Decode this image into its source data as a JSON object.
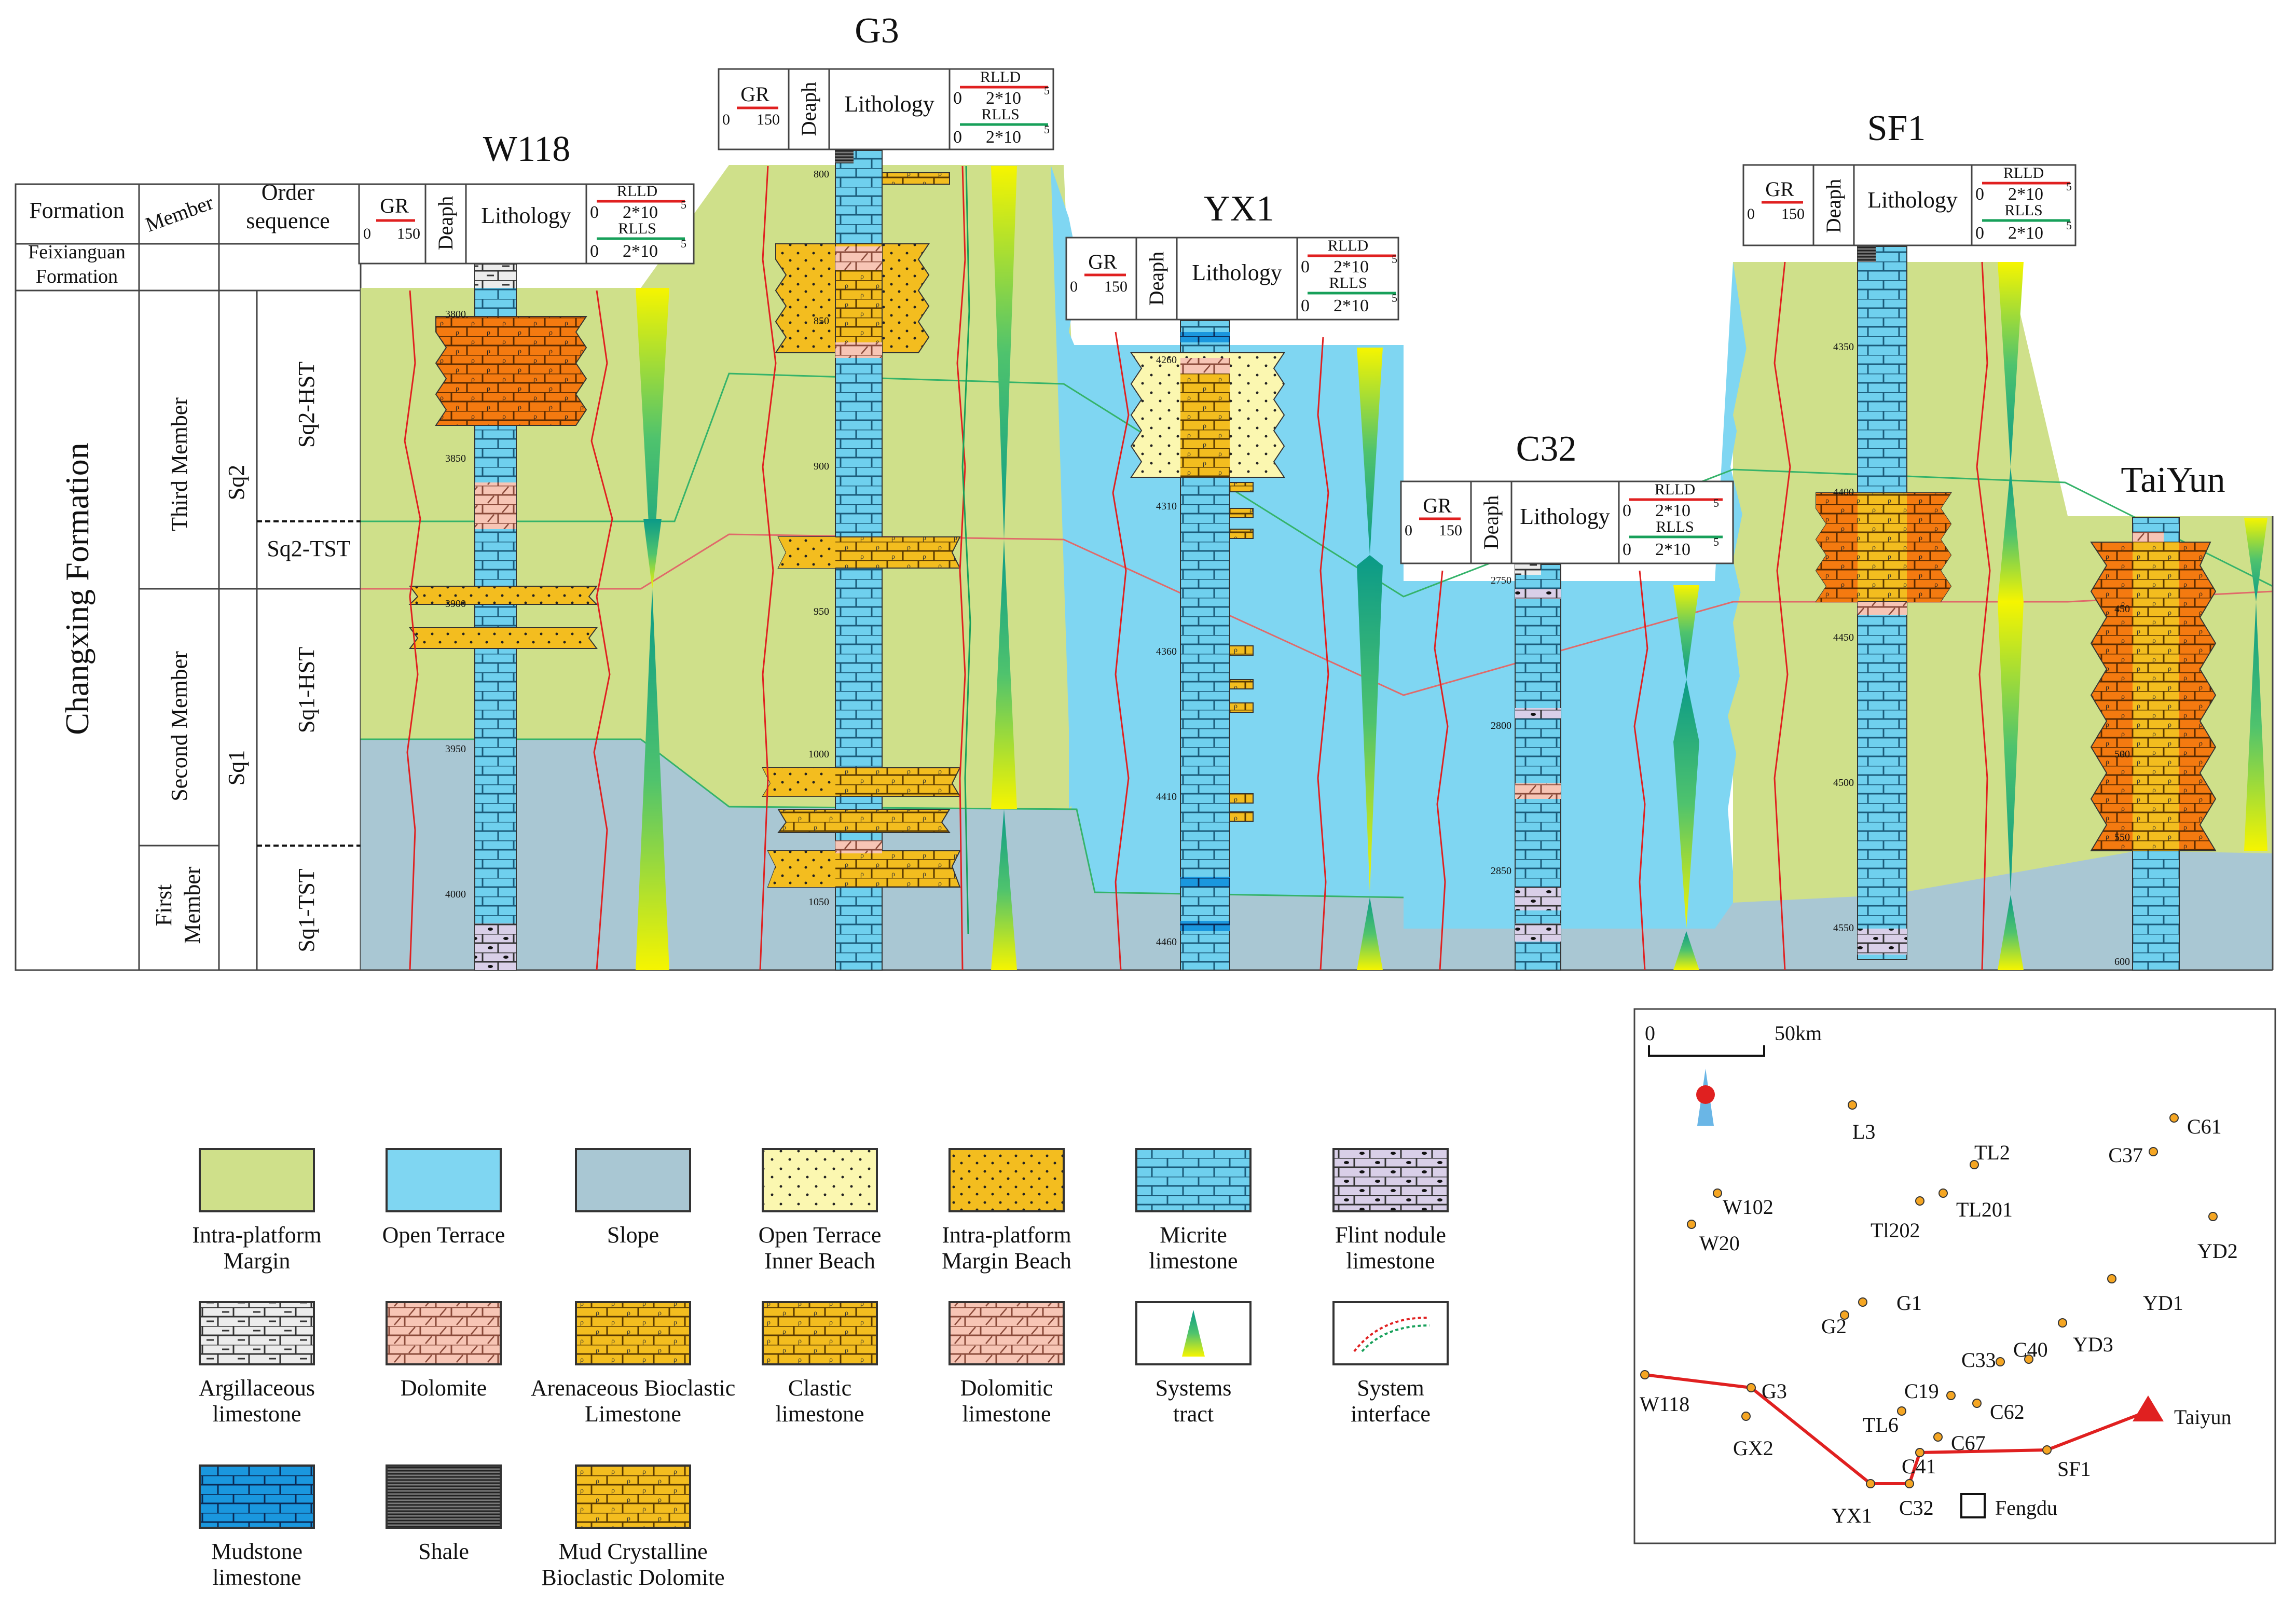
{
  "chart_data": {
    "type": "well-correlation-section",
    "title": "",
    "strat": {
      "formation_header": "Formation",
      "member_header": "Member",
      "order_header_1": "Order",
      "order_header_2": "sequence",
      "feixianguan_1": "Feixianguan",
      "feixianguan_2": "Formation",
      "changxing": "Changxing Formation",
      "third_member": "Third Member",
      "second_member": "Second Member",
      "first_member_1": "First",
      "first_member_2": "Member",
      "sq2": "Sq2",
      "sq1": "Sq1",
      "sq2_hst": "Sq2-HST",
      "sq2_tst": "Sq2-TST",
      "sq1_hst": "Sq1-HST",
      "sq1_tst": "Sq1-TST"
    },
    "track_header": {
      "gr": "GR",
      "gr_min": "0",
      "gr_max": "150",
      "depth": "Deaph",
      "lithology": "Lithology",
      "rlld": "RLLD",
      "rlls": "RLLS",
      "res_min": "0",
      "res_max": "2*10",
      "res_exp": "5"
    },
    "wells": [
      {
        "name": "W118",
        "depths": [
          3800,
          3850,
          3900,
          3950,
          4000
        ]
      },
      {
        "name": "G3",
        "depths": [
          800,
          850,
          900,
          950,
          1000,
          1050
        ]
      },
      {
        "name": "YX1",
        "depths": [
          4260,
          4310,
          4360,
          4410,
          4460
        ]
      },
      {
        "name": "C32",
        "depths": [
          2750,
          2800,
          2850
        ]
      },
      {
        "name": "SF1",
        "depths": [
          4350,
          4400,
          4450,
          4500,
          4550
        ]
      },
      {
        "name": "TaiYun",
        "depths": [
          450,
          500,
          550,
          600
        ]
      }
    ],
    "legend": [
      {
        "key": "platform-margin",
        "color": "#cfe08a",
        "l1": "Intra-platform",
        "l2": "Margin"
      },
      {
        "key": "open-terrace",
        "color": "#7fd6f2",
        "l1": "Open Terrace",
        "l2": ""
      },
      {
        "key": "slope",
        "color": "#a9c7d3",
        "l1": "Slope",
        "l2": ""
      },
      {
        "key": "inner-beach",
        "color": "#fbf7b0",
        "l1": "Open Terrace",
        "l2": "Inner Beach"
      },
      {
        "key": "margin-beach",
        "color": "#f3bd1f",
        "l1": "Intra-platform",
        "l2": "Margin Beach"
      },
      {
        "key": "micrite",
        "color": "#6fd0ee",
        "l1": "Micrite",
        "l2": "limestone"
      },
      {
        "key": "flint",
        "color": "#d9cfe8",
        "l1": "Flint nodule",
        "l2": "limestone"
      },
      {
        "key": "argillaceous",
        "color": "#ececec",
        "l1": "Argillaceous",
        "l2": "limestone"
      },
      {
        "key": "dolomite",
        "color": "#f7c5b5",
        "l1": "Dolomite",
        "l2": ""
      },
      {
        "key": "arenaceous",
        "color": "#f3bd1f",
        "l1": "Arenaceous Bioclastic",
        "l2": "Limestone"
      },
      {
        "key": "clastic",
        "color": "#f3bd1f",
        "l1": "Clastic",
        "l2": "limestone"
      },
      {
        "key": "dolomitic",
        "color": "#f7c5b5",
        "l1": "Dolomitic",
        "l2": "limestone"
      },
      {
        "key": "systems-tract",
        "color": "#ffffff",
        "l1": "Systems",
        "l2": "tract"
      },
      {
        "key": "system-interface",
        "color": "#ffffff",
        "l1": "System",
        "l2": "interface"
      },
      {
        "key": "mudstone",
        "color": "#1a97de",
        "l1": "Mudstone",
        "l2": "limestone"
      },
      {
        "key": "shale",
        "color": "#555555",
        "l1": "Shale",
        "l2": ""
      },
      {
        "key": "mud-crystalline",
        "color": "#f3bd1f",
        "l1": "Mud Crystalline",
        "l2": "Bioclastic Dolomite"
      }
    ],
    "map": {
      "scale_zero": "0",
      "scale_label": "50km",
      "section_line": [
        "W118",
        "G3",
        "YX1",
        "C32",
        "C41",
        "SF1",
        "Taiyun"
      ],
      "wells": [
        "L3",
        "TL2",
        "C37",
        "C61",
        "W102",
        "W20",
        "Tl202",
        "TL201",
        "YD2",
        "G1",
        "G2",
        "YD1",
        "C40",
        "C33",
        "YD3",
        "W118",
        "G3",
        "C19",
        "C62",
        "TL6",
        "Taiyun",
        "GX2",
        "C67",
        "C41",
        "SF1",
        "YX1",
        "C32"
      ],
      "city": "Fengdu"
    }
  }
}
